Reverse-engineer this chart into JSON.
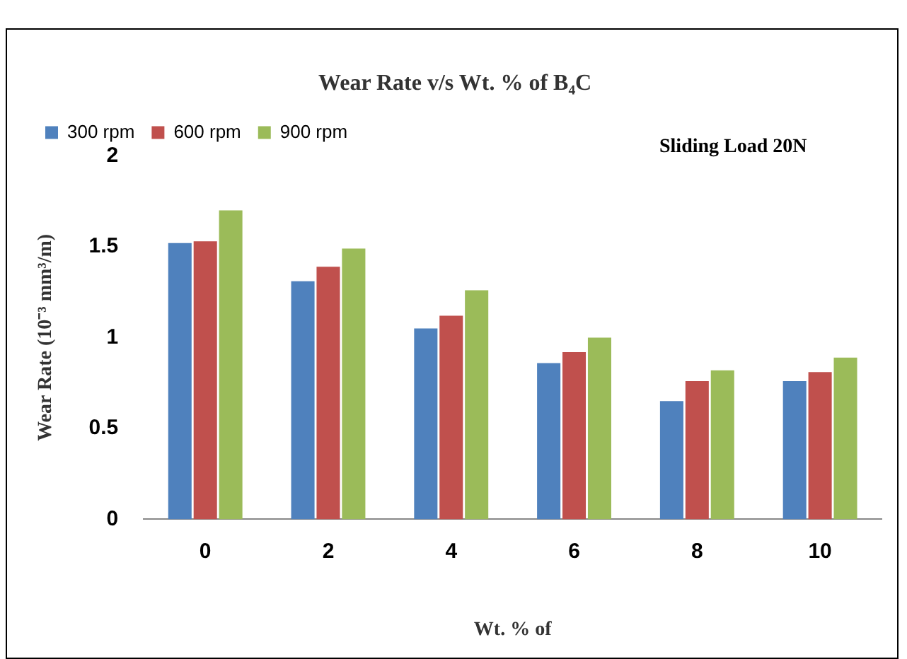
{
  "chart_data": {
    "type": "bar",
    "title": "Wear Rate v/s Wt. % of B₄C",
    "xlabel": "Wt. % of",
    "ylabel": "Wear Rate (10⁻³ mm³/m)",
    "annotations": [
      "Sliding Load 20N"
    ],
    "categories": [
      "0",
      "2",
      "4",
      "6",
      "8",
      "10"
    ],
    "series": [
      {
        "name": "300 rpm",
        "color": "#4f81bd",
        "values": [
          1.52,
          1.31,
          1.05,
          0.86,
          0.65,
          0.76
        ]
      },
      {
        "name": "600 rpm",
        "color": "#c0504d",
        "values": [
          1.53,
          1.39,
          1.12,
          0.92,
          0.76,
          0.81
        ]
      },
      {
        "name": "900 rpm",
        "color": "#9bbb59",
        "values": [
          1.7,
          1.49,
          1.26,
          1.0,
          0.82,
          0.89
        ]
      }
    ],
    "ylim": [
      0,
      2
    ],
    "yticks": [
      0,
      0.5,
      1,
      1.5,
      2
    ],
    "grid": false,
    "legend": "top"
  }
}
